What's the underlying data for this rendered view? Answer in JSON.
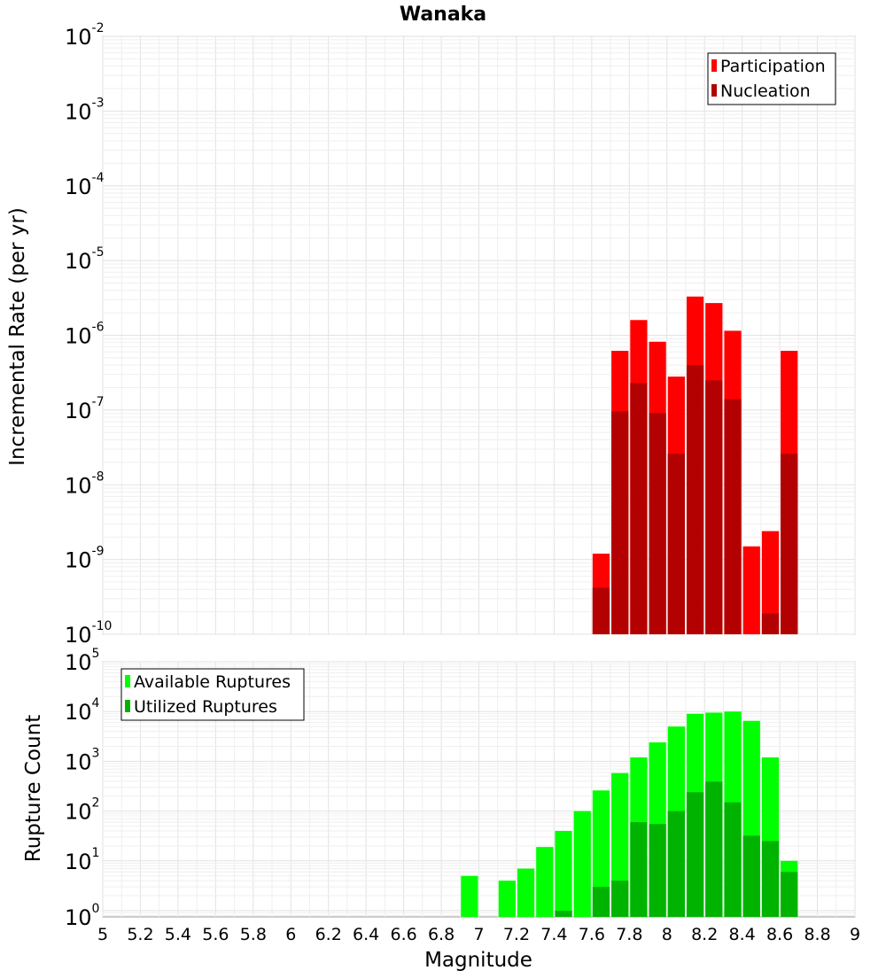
{
  "title": "Wanaka",
  "xlabel": "Magnitude",
  "colors": {
    "participation": "#ff0000",
    "nucleation": "#b30000",
    "available": "#00ff00",
    "utilized": "#00b300",
    "frame": "#9a9a9a",
    "grid": "#e2e2e2"
  },
  "x_ticks": [
    "5",
    "5.2",
    "5.4",
    "5.6",
    "5.8",
    "6",
    "6.2",
    "6.4",
    "6.6",
    "6.8",
    "7",
    "7.2",
    "7.4",
    "7.6",
    "7.8",
    "8",
    "8.2",
    "8.4",
    "8.6",
    "8.8",
    "9"
  ],
  "chart_data": [
    {
      "type": "bar",
      "title": "Wanaka",
      "ylabel": "Incremental Rate (per yr)",
      "xlabel": "",
      "xlim": [
        5,
        9
      ],
      "ylim": [
        1e-10,
        0.01
      ],
      "y_scale": "log",
      "y_tick_exponents": [
        "-2",
        "-3",
        "-4",
        "-5",
        "-6",
        "-7",
        "-8",
        "-9",
        "-10"
      ],
      "legend": {
        "position": "top-right",
        "entries": [
          "Participation",
          "Nucleation"
        ]
      },
      "bin_width": 0.1,
      "x": [
        7.65,
        7.75,
        7.85,
        7.95,
        8.05,
        8.15,
        8.25,
        8.35,
        8.45,
        8.55,
        8.65
      ],
      "series": [
        {
          "name": "Participation",
          "values": [
            1.2e-09,
            6.2e-07,
            1.6e-06,
            8.2e-07,
            2.8e-07,
            3.3e-06,
            2.7e-06,
            1.15e-06,
            1.5e-09,
            2.4e-09,
            6.2e-07
          ]
        },
        {
          "name": "Nucleation",
          "values": [
            4.2e-10,
            9.6e-08,
            2.3e-07,
            9.1e-08,
            2.6e-08,
            4e-07,
            2.5e-07,
            1.4e-07,
            null,
            1.9e-10,
            2.6e-08
          ]
        }
      ]
    },
    {
      "type": "bar",
      "title": "",
      "ylabel": "Rupture Count",
      "xlabel": "Magnitude",
      "xlim": [
        5,
        9
      ],
      "ylim": [
        0.75,
        100000
      ],
      "y_scale": "log",
      "y_tick_exponents": [
        "5",
        "4",
        "3",
        "2",
        "1",
        "0"
      ],
      "legend": {
        "position": "top-left",
        "entries": [
          "Available Ruptures",
          "Utilized Ruptures"
        ]
      },
      "bin_width": 0.1,
      "x": [
        6.95,
        7.15,
        7.25,
        7.35,
        7.45,
        7.55,
        7.65,
        7.75,
        7.85,
        7.95,
        8.05,
        8.15,
        8.25,
        8.35,
        8.45,
        8.55,
        8.65
      ],
      "series": [
        {
          "name": "Available Ruptures",
          "values": [
            5,
            4,
            7,
            19,
            40,
            100,
            260,
            580,
            1200,
            2400,
            5000,
            9000,
            9500,
            10000,
            6500,
            1200,
            10
          ]
        },
        {
          "name": "Utilized Ruptures",
          "values": [
            null,
            null,
            null,
            null,
            1,
            null,
            3,
            4,
            60,
            55,
            100,
            240,
            390,
            150,
            32,
            25,
            6
          ]
        }
      ]
    }
  ]
}
